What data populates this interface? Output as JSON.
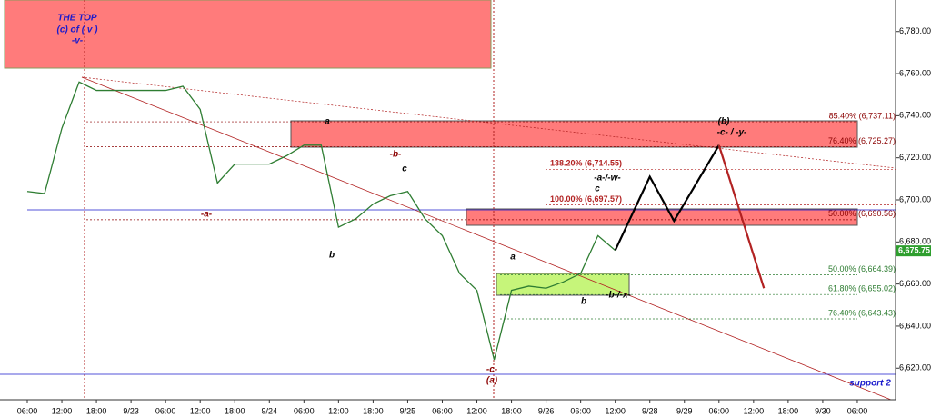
{
  "chart_data": {
    "type": "line",
    "categories": [
      "06:00",
      null,
      "12:00",
      null,
      "18:00",
      null,
      "9/23",
      null,
      "06:00",
      null,
      "12:00",
      null,
      "18:00",
      null,
      "9/24",
      null,
      "06:00",
      null,
      "12:00",
      null,
      "18:00",
      null,
      "9/25",
      null,
      "06:00",
      null,
      "12:00",
      null,
      "18:00",
      null,
      "9/26",
      null,
      "06:00",
      null,
      "12:00",
      null,
      "9/28",
      null,
      "9/29",
      null,
      "06:00",
      null,
      "12:00",
      null,
      "18:00",
      null,
      "9/30",
      null,
      "06:00"
    ],
    "series": [
      {
        "color": "#2e7d32",
        "values": [
          6704,
          6703,
          6734,
          6756,
          6752,
          6752,
          6752,
          6752,
          6752,
          6754,
          6743,
          6708,
          6717,
          6717,
          6717,
          6721,
          6726,
          6726,
          6687,
          6691,
          6698,
          6702,
          6704,
          6691,
          6683,
          6665,
          6657,
          6624,
          6657,
          6659,
          6658,
          6661,
          6665,
          6683,
          6676,
          null,
          null,
          null,
          null,
          null,
          null,
          null,
          null,
          null,
          null,
          null,
          null,
          null,
          null
        ]
      },
      {
        "color": "#000000",
        "x": [
          34,
          36,
          37.4,
          40
        ],
        "values": [
          6676,
          6711,
          6690,
          6726
        ]
      },
      {
        "color": "#b22222",
        "x": [
          40,
          42.6
        ],
        "values": [
          6726,
          6658
        ]
      }
    ],
    "ylim": [
      6605,
      6795
    ],
    "yticks": [
      {
        "value": 6620,
        "label": "6,620.00"
      },
      {
        "value": 6640,
        "label": "6,640.00"
      },
      {
        "value": 6660,
        "label": "6,660.00"
      },
      {
        "value": 6680,
        "label": "6,680.00"
      },
      {
        "value": 6700,
        "label": "6,700.00"
      },
      {
        "value": 6720,
        "label": "6,720.00"
      },
      {
        "value": 6740,
        "label": "6,740.00"
      },
      {
        "value": 6760,
        "label": "6,760.00"
      },
      {
        "value": 6780,
        "label": "6,780.00"
      }
    ],
    "last_price": {
      "value": 6675.75,
      "label": "6,675.75"
    },
    "fib_levels": [
      {
        "value": 6737.11,
        "label": "85.40% (6,737.11)",
        "color": "#8b0000"
      },
      {
        "value": 6725.27,
        "label": "76.40% (6,725.27)",
        "color": "#8b0000"
      },
      {
        "value": 6690.56,
        "label": "50.00% (6,690.56)",
        "color": "#8b0000"
      },
      {
        "value": 6664.39,
        "label": "50.00% (6,664.39)",
        "color": "#2e7d32"
      },
      {
        "value": 6655.02,
        "label": "61.80% (6,655.02)",
        "color": "#2e7d32"
      },
      {
        "value": 6643.43,
        "label": "76.40% (6,643.43)",
        "color": "#2e7d32"
      }
    ],
    "extension_levels": [
      {
        "value": 6714.55,
        "label": "138.20% (6,714.55)"
      },
      {
        "value": 6697.57,
        "label": "100.00% (6,697.57)"
      }
    ],
    "annotations": [
      "THE TOP",
      "(c) of ( v )",
      "-v-",
      "a",
      "-b-",
      "c",
      "b",
      "-a-",
      "a",
      "b",
      "-b-/-x-",
      "c",
      "-a-/-w-",
      "(b)",
      "-c- / -y-",
      "-c-",
      "(a)",
      "support 2"
    ]
  }
}
